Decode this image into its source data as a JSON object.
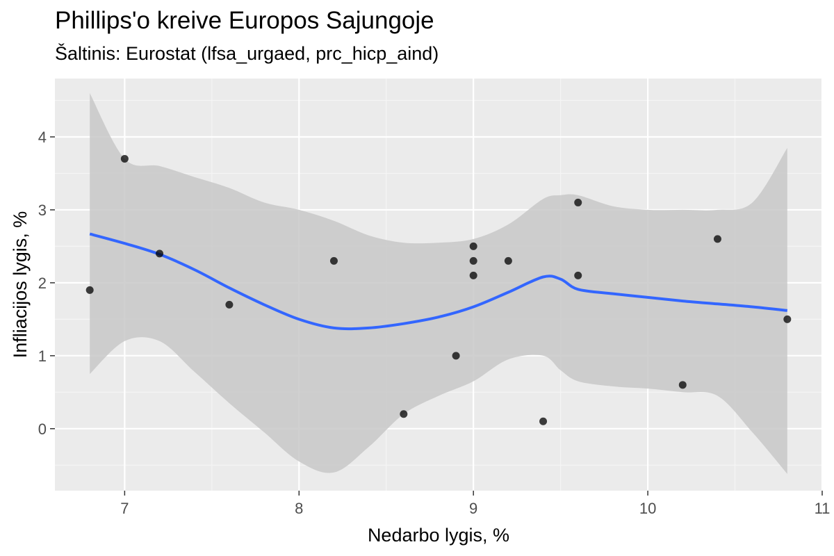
{
  "chart_data": {
    "type": "scatter",
    "title": "Phillips'o kreive Europos Sajungoje",
    "subtitle": "Šaltinis: Eurostat (lfsa_urgaed, prc_hicp_aind)",
    "xlabel": "Nedarbo lygis, %",
    "ylabel": "Infliacijos lygis, %",
    "xlim": [
      6.6,
      11.0
    ],
    "ylim": [
      -0.85,
      4.8
    ],
    "x_ticks": [
      7,
      8,
      9,
      10,
      11
    ],
    "y_ticks": [
      0,
      1,
      2,
      3,
      4
    ],
    "grid": true,
    "points": [
      {
        "x": 6.8,
        "y": 1.9
      },
      {
        "x": 7.0,
        "y": 3.7
      },
      {
        "x": 7.2,
        "y": 2.4
      },
      {
        "x": 7.6,
        "y": 1.7
      },
      {
        "x": 8.2,
        "y": 2.3
      },
      {
        "x": 8.6,
        "y": 0.2
      },
      {
        "x": 8.9,
        "y": 1.0
      },
      {
        "x": 9.0,
        "y": 2.5
      },
      {
        "x": 9.0,
        "y": 2.3
      },
      {
        "x": 9.0,
        "y": 2.1
      },
      {
        "x": 9.2,
        "y": 2.3
      },
      {
        "x": 9.4,
        "y": 0.1
      },
      {
        "x": 9.6,
        "y": 3.1
      },
      {
        "x": 9.6,
        "y": 2.1
      },
      {
        "x": 10.2,
        "y": 0.6
      },
      {
        "x": 10.4,
        "y": 2.6
      },
      {
        "x": 10.8,
        "y": 1.5
      }
    ],
    "smooth": {
      "x": [
        6.8,
        7.0,
        7.2,
        7.4,
        7.6,
        7.8,
        8.0,
        8.2,
        8.4,
        8.6,
        8.8,
        9.0,
        9.2,
        9.4,
        9.5,
        9.6,
        9.8,
        10.0,
        10.2,
        10.4,
        10.6,
        10.8
      ],
      "y": [
        2.67,
        2.54,
        2.39,
        2.18,
        1.93,
        1.7,
        1.5,
        1.38,
        1.38,
        1.44,
        1.53,
        1.67,
        1.87,
        2.08,
        2.05,
        1.91,
        1.85,
        1.8,
        1.75,
        1.71,
        1.67,
        1.62
      ],
      "lower": [
        0.75,
        1.2,
        1.2,
        0.78,
        0.35,
        -0.05,
        -0.45,
        -0.6,
        -0.25,
        0.2,
        0.45,
        0.65,
        0.95,
        1.0,
        0.8,
        0.65,
        0.58,
        0.55,
        0.5,
        0.45,
        -0.05,
        -0.62
      ],
      "upper": [
        4.6,
        3.7,
        3.6,
        3.45,
        3.3,
        3.1,
        3.0,
        2.85,
        2.65,
        2.55,
        2.55,
        2.6,
        2.8,
        3.15,
        3.2,
        3.2,
        3.05,
        3.0,
        3.0,
        3.0,
        3.1,
        3.85
      ]
    },
    "colors": {
      "panel": "#EBEBEB",
      "grid_major": "#FFFFFF",
      "grid_minor": "#F5F5F5",
      "ribbon": "#C8C8C8",
      "line": "#3366FF",
      "points": "#000000",
      "tick_text": "#4D4D4D"
    }
  }
}
